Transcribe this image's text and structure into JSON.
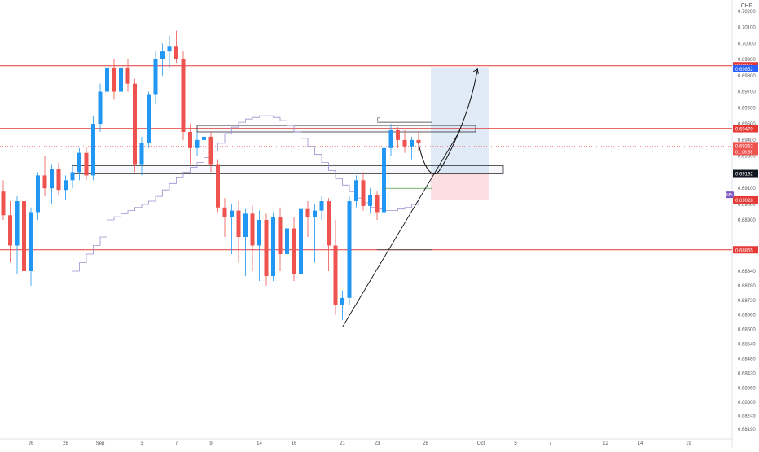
{
  "header": {
    "currency": "CHF"
  },
  "colors": {
    "up": "#2196f3",
    "down": "#ef5350",
    "level_line": "#e53935",
    "ma_line": "#9c8fd0",
    "target_zone": "#bcd3f0",
    "stop_zone": "#f9c9cb",
    "grid": "#f3f3f5",
    "axis_text": "#555555",
    "badge_text": "#ffffff",
    "badge_blue": "#2962ff",
    "badge_purple": "#7e57c2"
  },
  "chart_data": {
    "type": "candlestick",
    "title": "",
    "xlabel": "",
    "ylabel": "",
    "ylim": [
      0.6813,
      0.7025
    ],
    "grid": false,
    "price_ticks": [
      "0.70200",
      "0.70100",
      "0.70000",
      "0.69900",
      "0.69800",
      "0.69700",
      "0.69600",
      "0.69500",
      "0.69400",
      "0.69300",
      "0.69200",
      "0.69100",
      "0.69000",
      "0.68900",
      "0.68840",
      "0.68780",
      "0.68720",
      "0.68660",
      "0.68600",
      "0.68540",
      "0.68480",
      "0.68420",
      "0.68360",
      "0.68300",
      "0.68245",
      "0.68190"
    ],
    "time_ticks": [
      {
        "label": "26",
        "i": 4
      },
      {
        "label": "28",
        "i": 9
      },
      {
        "label": "Sep",
        "i": 14
      },
      {
        "label": "3",
        "i": 20
      },
      {
        "label": "7",
        "i": 25
      },
      {
        "label": "9",
        "i": 30
      },
      {
        "label": "14",
        "i": 37
      },
      {
        "label": "16",
        "i": 42
      },
      {
        "label": "21",
        "i": 49
      },
      {
        "label": "23",
        "i": 54
      },
      {
        "label": "28",
        "i": 61
      },
      {
        "label": "Oct",
        "i": 69
      },
      {
        "label": "5",
        "i": 74
      },
      {
        "label": "7",
        "i": 79
      },
      {
        "label": "12",
        "i": 87
      },
      {
        "label": "14",
        "i": 92
      },
      {
        "label": "19",
        "i": 99
      }
    ],
    "candles": [
      [
        0.6908,
        0.6915,
        0.689,
        0.6893
      ],
      [
        0.6893,
        0.6902,
        0.6885,
        0.6887
      ],
      [
        0.6887,
        0.6905,
        0.6883,
        0.6902
      ],
      [
        0.6902,
        0.6905,
        0.688,
        0.6884
      ],
      [
        0.6884,
        0.6898,
        0.6878,
        0.6895
      ],
      [
        0.6895,
        0.692,
        0.689,
        0.6918
      ],
      [
        0.6918,
        0.693,
        0.6905,
        0.691
      ],
      [
        0.691,
        0.6925,
        0.69,
        0.6922
      ],
      [
        0.6922,
        0.6926,
        0.6906,
        0.6909
      ],
      [
        0.6909,
        0.6918,
        0.6903,
        0.6915
      ],
      [
        0.6915,
        0.6925,
        0.691,
        0.692
      ],
      [
        0.692,
        0.6935,
        0.6915,
        0.6932
      ],
      [
        0.6932,
        0.6936,
        0.6915,
        0.6918
      ],
      [
        0.6918,
        0.6955,
        0.6915,
        0.695
      ],
      [
        0.695,
        0.6975,
        0.6945,
        0.697
      ],
      [
        0.697,
        0.699,
        0.696,
        0.6985
      ],
      [
        0.6985,
        0.699,
        0.6965,
        0.697
      ],
      [
        0.697,
        0.699,
        0.6968,
        0.6985
      ],
      [
        0.6985,
        0.699,
        0.697,
        0.6975
      ],
      [
        0.6975,
        0.6978,
        0.692,
        0.6925
      ],
      [
        0.6925,
        0.6942,
        0.6918,
        0.6938
      ],
      [
        0.6938,
        0.697,
        0.6935,
        0.6968
      ],
      [
        0.6968,
        0.6995,
        0.6962,
        0.699
      ],
      [
        0.699,
        0.7,
        0.698,
        0.6995
      ],
      [
        0.6995,
        0.7005,
        0.6985,
        0.6998
      ],
      [
        0.6998,
        0.7008,
        0.6988,
        0.699
      ],
      [
        0.699,
        0.6995,
        0.694,
        0.6945
      ],
      [
        0.6945,
        0.695,
        0.6925,
        0.6935
      ],
      [
        0.6935,
        0.6945,
        0.693,
        0.694
      ],
      [
        0.694,
        0.6946,
        0.6932,
        0.6942
      ],
      [
        0.6942,
        0.6945,
        0.692,
        0.6925
      ],
      [
        0.6925,
        0.6928,
        0.6895,
        0.6898
      ],
      [
        0.6898,
        0.6904,
        0.6888,
        0.6892
      ],
      [
        0.6892,
        0.69,
        0.6886,
        0.6896
      ],
      [
        0.6896,
        0.6902,
        0.6885,
        0.6888
      ],
      [
        0.6888,
        0.6897,
        0.6882,
        0.6894
      ],
      [
        0.6894,
        0.6899,
        0.6884,
        0.6887
      ],
      [
        0.6887,
        0.6896,
        0.688,
        0.689
      ],
      [
        0.689,
        0.6894,
        0.6878,
        0.6882
      ],
      [
        0.6882,
        0.6895,
        0.688,
        0.6892
      ],
      [
        0.6892,
        0.6898,
        0.6884,
        0.6886
      ],
      [
        0.6886,
        0.6893,
        0.6878,
        0.6889
      ],
      [
        0.6889,
        0.6892,
        0.688,
        0.6883
      ],
      [
        0.6883,
        0.69,
        0.688,
        0.6897
      ],
      [
        0.6897,
        0.6902,
        0.6888,
        0.6892
      ],
      [
        0.6892,
        0.69,
        0.6885,
        0.6896
      ],
      [
        0.6896,
        0.6905,
        0.689,
        0.6902
      ],
      [
        0.6902,
        0.6904,
        0.6884,
        0.6887
      ],
      [
        0.6887,
        0.689,
        0.6866,
        0.687
      ],
      [
        0.687,
        0.6876,
        0.6864,
        0.6873
      ],
      [
        0.6873,
        0.6905,
        0.687,
        0.6902
      ],
      [
        0.6902,
        0.6918,
        0.6898,
        0.6915
      ],
      [
        0.6915,
        0.692,
        0.6896,
        0.6899
      ],
      [
        0.6899,
        0.691,
        0.6894,
        0.6906
      ],
      [
        0.6906,
        0.6908,
        0.689,
        0.6895
      ],
      [
        0.6895,
        0.6938,
        0.6893,
        0.6935
      ],
      [
        0.6935,
        0.695,
        0.693,
        0.6946
      ],
      [
        0.6946,
        0.6948,
        0.6935,
        0.694
      ],
      [
        0.694,
        0.6946,
        0.6932,
        0.6936
      ],
      [
        0.6936,
        0.6942,
        0.6928,
        0.694
      ],
      [
        0.694,
        0.6945,
        0.6933,
        0.6938
      ]
    ],
    "moving_average": [
      0.6884,
      0.6885,
      0.6886,
      0.6887,
      0.6888,
      0.689,
      0.6892,
      0.6894,
      0.6896,
      0.6898,
      0.69,
      0.6902,
      0.6905,
      0.6909,
      0.6913,
      0.6917,
      0.692,
      0.6923,
      0.6926,
      0.6929,
      0.6933,
      0.6938,
      0.6944,
      0.6948,
      0.6951,
      0.6953,
      0.6954,
      0.6955,
      0.6955,
      0.6954,
      0.6952,
      0.6949,
      0.6945,
      0.6941,
      0.6936,
      0.6931,
      0.6926,
      0.6921,
      0.6916,
      0.6912,
      0.6908,
      0.6904,
      0.6901,
      0.6898,
      0.6897,
      0.6896,
      0.6896,
      0.6897,
      0.6898,
      0.69,
      0.6902
    ],
    "levels": [
      {
        "price": 0.69861,
        "label": "0.69861",
        "style": "solid"
      },
      {
        "price": 0.6947,
        "label": "0.69470",
        "style": "solid"
      },
      {
        "price": 0.68865,
        "label": "0.68865",
        "style": "solid"
      }
    ],
    "current_price": {
      "price": 0.69362,
      "label": "0.69362",
      "countdown": "01:06:58"
    },
    "badges": [
      {
        "price": 0.69852,
        "label": "0.69852",
        "color": "badge_blue"
      },
      {
        "price": 0.69192,
        "label": "0.69192",
        "color": "dark"
      },
      {
        "price": 0.69028,
        "label": "0.69028",
        "color": "level_line"
      }
    ],
    "side_tag": {
      "price": 0.6903,
      "label": "MA"
    },
    "zones": [
      {
        "name": "resistance",
        "from_i": 28,
        "to_i": 68,
        "low": 0.6945,
        "high": 0.6949
      },
      {
        "name": "support",
        "from_i": 10,
        "to_i": 72,
        "low": 0.6919,
        "high": 0.6924
      }
    ],
    "position": {
      "from_i": 62,
      "to_i": 70,
      "entry": 0.69192,
      "target": 0.69852,
      "stop": 0.69028
    },
    "annotations": [
      {
        "text": "D",
        "i": 54,
        "price": 0.6951
      }
    ]
  }
}
